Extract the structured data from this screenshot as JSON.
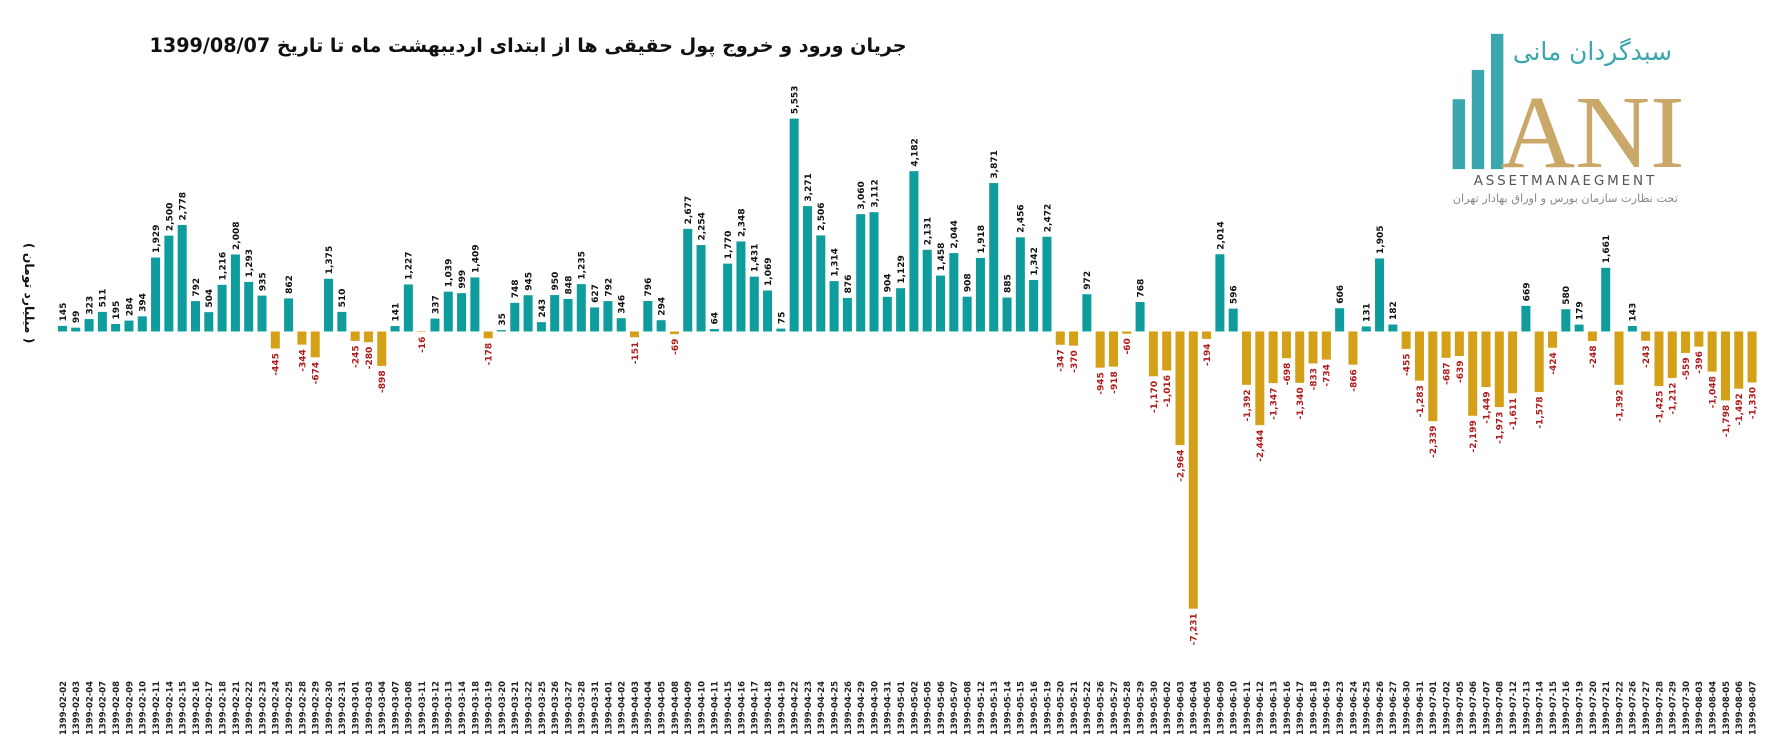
{
  "chart_data": {
    "type": "bar",
    "title": "جریان ورود و خروج پول حقیقی ها از ابتدای اردیبهشت ماه تا تاریخ 1399/08/07",
    "y_label": "( میلیارد تومان )",
    "color": "#0e9c9c",
    "negative_color": "#d4a017",
    "label_color": "#111111",
    "negative_label_color": "#b01c1c",
    "categories": [
      "1399-02-02",
      "1399-02-03",
      "1399-02-04",
      "1399-02-07",
      "1399-02-08",
      "1399-02-09",
      "1399-02-10",
      "1399-02-11",
      "1399-02-14",
      "1399-02-15",
      "1399-02-16",
      "1399-02-17",
      "1399-02-18",
      "1399-02-21",
      "1399-02-22",
      "1399-02-23",
      "1399-02-24",
      "1399-02-25",
      "1399-02-28",
      "1399-02-29",
      "1399-02-30",
      "1399-02-31",
      "1399-03-01",
      "1399-03-03",
      "1399-03-04",
      "1399-03-07",
      "1399-03-08",
      "1399-03-11",
      "1399-03-12",
      "1399-03-13",
      "1399-03-14",
      "1399-03-18",
      "1399-03-19",
      "1399-03-20",
      "1399-03-21",
      "1399-03-22",
      "1399-03-25",
      "1399-03-26",
      "1399-03-27",
      "1399-03-28",
      "1399-03-31",
      "1399-04-01",
      "1399-04-02",
      "1399-04-03",
      "1399-04-04",
      "1399-04-05",
      "1399-04-08",
      "1399-04-09",
      "1399-04-10",
      "1399-04-11",
      "1399-04-15",
      "1399-04-16",
      "1399-04-17",
      "1399-04-18",
      "1399-04-19",
      "1399-04-22",
      "1399-04-23",
      "1399-04-24",
      "1399-04-25",
      "1399-04-26",
      "1399-04-29",
      "1399-04-30",
      "1399-04-31",
      "1399-05-01",
      "1399-05-02",
      "1399-05-05",
      "1399-05-06",
      "1399-05-07",
      "1399-05-08",
      "1399-05-12",
      "1399-05-13",
      "1399-05-14",
      "1399-05-15",
      "1399-05-16",
      "1399-05-19",
      "1399-05-20",
      "1399-05-21",
      "1399-05-22",
      "1399-05-26",
      "1399-05-27",
      "1399-05-28",
      "1399-05-29",
      "1399-05-30",
      "1399-06-02",
      "1399-06-03",
      "1399-06-04",
      "1399-06-05",
      "1399-06-09",
      "1399-06-10",
      "1399-06-11",
      "1399-06-12",
      "1399-06-13",
      "1399-06-16",
      "1399-06-17",
      "1399-06-18",
      "1399-06-19",
      "1399-06-23",
      "1399-06-24",
      "1399-06-25",
      "1399-06-26",
      "1399-06-27",
      "1399-06-30",
      "1399-06-31",
      "1399-07-01",
      "1399-07-02",
      "1399-07-05",
      "1399-07-06",
      "1399-07-07",
      "1399-07-08",
      "1399-07-12",
      "1399-07-13",
      "1399-07-14",
      "1399-07-15",
      "1399-07-16",
      "1399-07-19",
      "1399-07-20",
      "1399-07-21",
      "1399-07-22",
      "1399-07-26",
      "1399-07-27",
      "1399-07-28",
      "1399-07-29",
      "1399-07-30",
      "1399-08-03",
      "1399-08-04",
      "1399-08-05",
      "1399-08-06",
      "1399-08-07"
    ],
    "values": [
      145,
      99,
      323,
      511,
      195,
      284,
      394,
      1929,
      2500,
      2778,
      792,
      504,
      1216,
      2008,
      1293,
      935,
      -445,
      862,
      -344,
      -674,
      1375,
      510,
      -245,
      -280,
      -898,
      141,
      1227,
      -16,
      337,
      1039,
      999,
      1409,
      -178,
      35,
      748,
      945,
      243,
      950,
      848,
      1235,
      627,
      792,
      346,
      -151,
      796,
      294,
      -69,
      2677,
      2254,
      64,
      1770,
      2348,
      1431,
      1069,
      75,
      5553,
      3271,
      2506,
      1314,
      876,
      3060,
      3112,
      904,
      1129,
      4182,
      2131,
      1458,
      2044,
      908,
      1918,
      3871,
      885,
      2456,
      1342,
      2472,
      -347,
      -370,
      972,
      -945,
      -918,
      -60,
      768,
      -1170,
      -1016,
      -2964,
      -7231,
      -194,
      2014,
      596,
      -1392,
      -2444,
      -1347,
      -698,
      -1340,
      -833,
      -734,
      606,
      -866,
      131,
      1905,
      182,
      -455,
      -1283,
      -2339,
      -687,
      -639,
      -2199,
      -1449,
      -1973,
      -1611,
      669,
      -1578,
      -424,
      580,
      179,
      -248,
      1661,
      -1392,
      143,
      -243,
      -1425,
      -1212,
      -559,
      -396,
      -1048,
      -1798,
      -1492,
      -1330
    ],
    "value_labels": [
      "145",
      "99",
      "323",
      "511",
      "195",
      "284",
      "394",
      "1,929",
      "2,500",
      "2,778",
      "792",
      "504",
      "1,216",
      "2,008",
      "1,293",
      "935",
      "-445",
      "862",
      "-344",
      "-674",
      "1,375",
      "510",
      "-245",
      "-280",
      "-898",
      "141",
      "1,227",
      "-16",
      "337",
      "1,039",
      "999",
      "1,409",
      "-178",
      "35",
      "748",
      "945",
      "243",
      "950",
      "848",
      "1,235",
      "627",
      "792",
      "346",
      "-151",
      "796",
      "294",
      "-69",
      "2,677",
      "2,254",
      "64",
      "1,770",
      "2,348",
      "1,431",
      "1,069",
      "75",
      "5,553",
      "3,271",
      "2,506",
      "1,314",
      "876",
      "3,060",
      "3,112",
      "904",
      "1,129",
      "4,182",
      "2,131",
      "1,458",
      "2,044",
      "908",
      "1,918",
      "3,871",
      "885",
      "2,456",
      "1,342",
      "2,472",
      "-347",
      "-370",
      "972",
      "-945",
      "-918",
      "-60",
      "768",
      "-1,170",
      "-1,016",
      "-2,964",
      "-7,231",
      "-194",
      "2,014",
      "596",
      "-1,392",
      "-2,444",
      "-1,347",
      "-698",
      "-1,340",
      "-833",
      "-734",
      "606",
      "-866",
      "131",
      "1,905",
      "182",
      "-455",
      "-1,283",
      "-2,339",
      "-687",
      "-639",
      "-2,199",
      "-1,449",
      "-1,973",
      "-1,611",
      "669",
      "-1,578",
      "-424",
      "580",
      "179",
      "-248",
      "1,661",
      "-1,392",
      "143",
      "-243",
      "-1,425",
      "-1,212",
      "-559",
      "-396",
      "-1,048",
      "-1,798",
      "-1,492",
      "-1,330"
    ]
  },
  "logo": {
    "brand": "سبدگردان مانی",
    "mark": "ANI",
    "english": "ASSETMANAEGMENT",
    "tagline": "تحت نظارت سازمان بورس و اوراق بهادار تهران"
  }
}
